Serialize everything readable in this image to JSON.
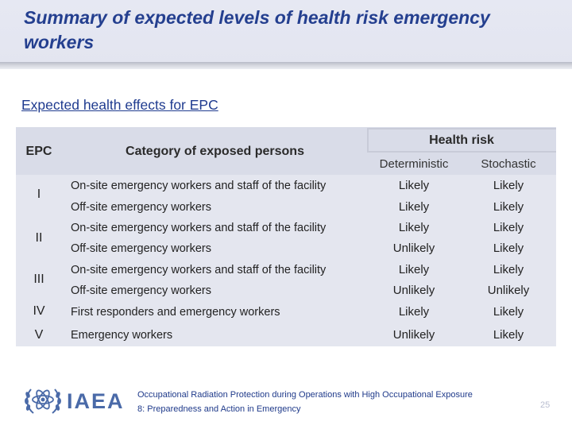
{
  "slide": {
    "title": "Summary of expected levels of health risk emergency workers",
    "subtitle": "Expected health effects for EPC"
  },
  "table": {
    "headers": {
      "epc": "EPC",
      "category": "Category of exposed persons",
      "health_risk": "Health risk",
      "deterministic": "Deterministic",
      "stochastic": "Stochastic"
    },
    "groups": [
      {
        "epc": "I"
      },
      {
        "epc": "II"
      },
      {
        "epc": "III"
      },
      {
        "epc": "IV"
      },
      {
        "epc": "V"
      }
    ],
    "rows": [
      {
        "category": "On-site emergency workers and staff of the facility",
        "deterministic": "Likely",
        "stochastic": "Likely"
      },
      {
        "category": "Off-site emergency workers",
        "deterministic": "Likely",
        "stochastic": "Likely"
      },
      {
        "category": "On-site emergency workers and staff of the facility",
        "deterministic": "Likely",
        "stochastic": "Likely"
      },
      {
        "category": "Off-site emergency workers",
        "deterministic": "Unlikely",
        "stochastic": "Likely"
      },
      {
        "category": "On-site emergency workers and staff of the facility",
        "deterministic": "Likely",
        "stochastic": "Likely"
      },
      {
        "category": "Off-site emergency workers",
        "deterministic": "Unlikely",
        "stochastic": "Unlikely"
      },
      {
        "category": "First responders and emergency workers",
        "deterministic": "Likely",
        "stochastic": "Likely"
      },
      {
        "category": "Emergency workers",
        "deterministic": "Unlikely",
        "stochastic": "Likely"
      }
    ]
  },
  "footer": {
    "logo_text": "IAEA",
    "line1": "Occupational Radiation Protection during Operations with High Occupational Exposure",
    "line2": "8: Preparedness and Action in Emergency",
    "page_number": "25"
  },
  "colors": {
    "title": "#243f8f",
    "subtitle": "#1f3b8f",
    "table_bg": "#e4e6ef",
    "header_band": "#e6e8f3",
    "logo": "#4a6aa8"
  },
  "icons": {
    "logo": "iaea-atom-laurel-icon"
  }
}
